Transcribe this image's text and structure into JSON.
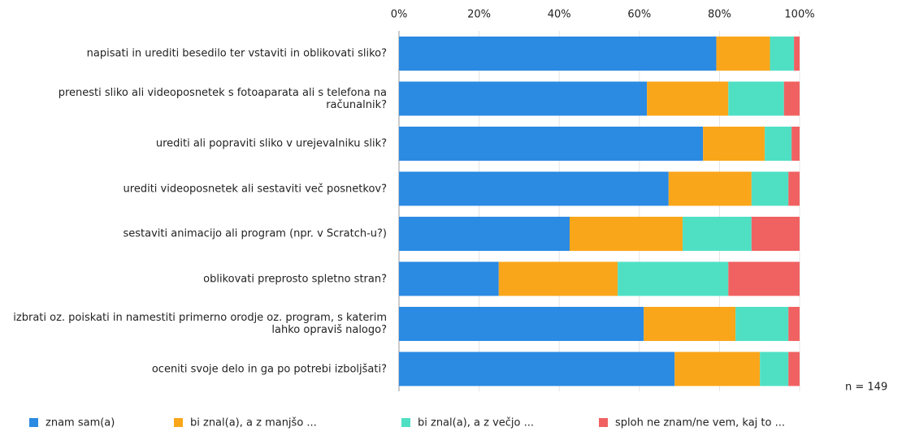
{
  "chart_data": {
    "type": "stacked-bar-horizontal",
    "categories": [
      "napisati in urediti besedilo ter vstaviti in oblikovati sliko?",
      "prenesti sliko ali videoposnetek s fotoaparata ali s telefona na računalnik?",
      "urediti ali popraviti sliko v urejevalniku slik?",
      "urediti videoposnetek ali sestaviti več posnetkov?",
      "sestaviti animacijo ali program (npr. v Scratch-u?)",
      "oblikovati preprosto spletno stran?",
      "izbrati oz. poiskati in namestiti primerno orodje oz. program, s katerim lahko opraviš nalogo?",
      "oceniti svoje delo in ga po potrebi izboljšati?"
    ],
    "series": [
      {
        "name": "znam sam(a)",
        "color": "#2b8ae2",
        "values": [
          79.2,
          61.9,
          75.9,
          67.3,
          42.6,
          24.9,
          61.1,
          68.8
        ]
      },
      {
        "name": "bi znal(a), a z manjšo ...",
        "color": "#faa61a",
        "values": [
          13.4,
          20.3,
          15.4,
          20.7,
          28.2,
          29.7,
          22.9,
          21.3
        ]
      },
      {
        "name": "bi znal(a), a z večjo ...",
        "color": "#4fe0c4",
        "values": [
          6.0,
          13.9,
          6.7,
          9.2,
          17.2,
          27.6,
          13.2,
          7.1
        ]
      },
      {
        "name": "sploh ne znam/ne vem, kaj to ...",
        "color": "#f06262",
        "values": [
          1.4,
          3.9,
          2.0,
          2.8,
          12.0,
          17.8,
          2.8,
          2.8
        ]
      }
    ],
    "xlim": [
      0,
      100
    ],
    "xticks": [
      {
        "value": 0,
        "label": "0%"
      },
      {
        "value": 20,
        "label": "20%"
      },
      {
        "value": 40,
        "label": "40%"
      },
      {
        "value": 60,
        "label": "60%"
      },
      {
        "value": 80,
        "label": "80%"
      },
      {
        "value": 100,
        "label": "100%"
      }
    ],
    "annotation": "n = 149",
    "grid": true
  }
}
